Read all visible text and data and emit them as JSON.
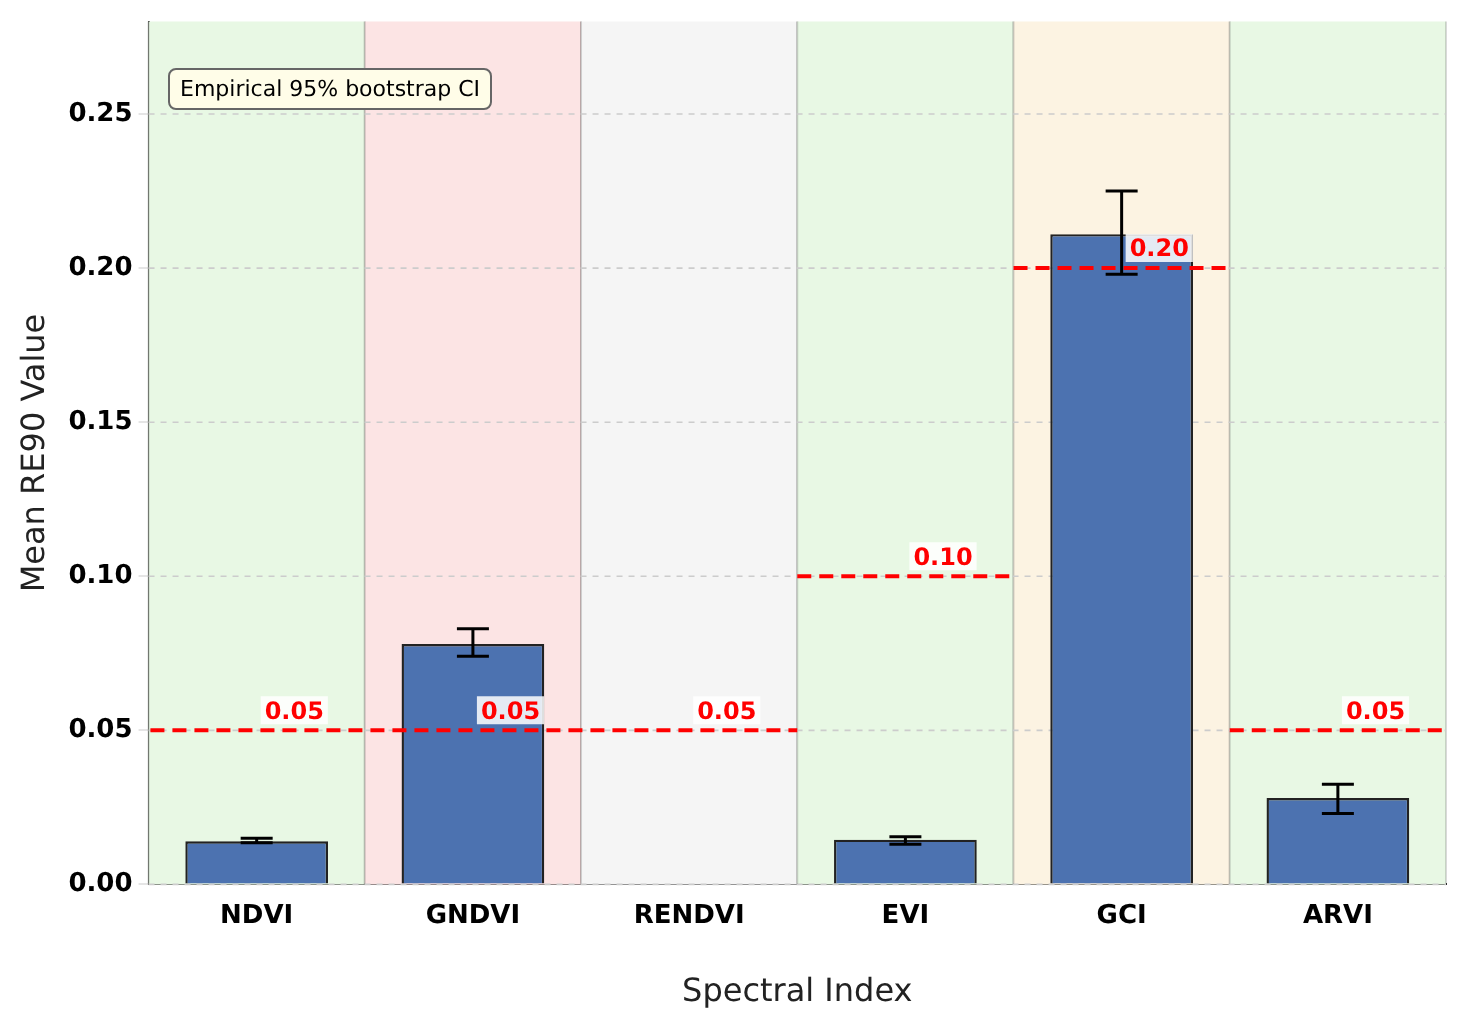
{
  "chart_data": {
    "type": "bar",
    "xlabel": "Spectral Index",
    "ylabel": "Mean RE90 Value",
    "categories": [
      "NDVI",
      "GNDVI",
      "RENDVI",
      "EVI",
      "GCI",
      "ARVI"
    ],
    "series": [
      {
        "type": "bar",
        "color": "#4c72b0",
        "values": [
          0.014,
          0.078,
          null,
          0.0145,
          0.211,
          0.028
        ],
        "errors": [
          [
            0.0135,
            0.015
          ],
          [
            0.074,
            0.083
          ],
          null,
          [
            0.013,
            0.0155
          ],
          [
            0.198,
            0.225
          ],
          [
            0.023,
            0.0325
          ]
        ]
      },
      {
        "type": "step",
        "color": "#ff0000",
        "line_style": "dashed",
        "values": [
          0.05,
          0.05,
          0.05,
          0.1,
          0.2,
          0.05
        ],
        "value_labels": [
          "0.05",
          "0.05",
          "0.05",
          "0.10",
          "0.20",
          "0.05"
        ]
      }
    ],
    "bands": [
      {
        "axis": "x",
        "from": "NDVI",
        "to": "NDVI",
        "color": "#e8f8e4"
      },
      {
        "axis": "x",
        "from": "GNDVI",
        "to": "GNDVI",
        "color": "#fce4e4"
      },
      {
        "axis": "x",
        "from": "RENDVI",
        "to": "RENDVI",
        "color": "#f5f5f5"
      },
      {
        "axis": "x",
        "from": "EVI",
        "to": "EVI",
        "color": "#e8f8e4"
      },
      {
        "axis": "x",
        "from": "GCI",
        "to": "GCI",
        "color": "#fcf3e2"
      },
      {
        "axis": "x",
        "from": "ARVI",
        "to": "ARVI",
        "color": "#e8f8e4"
      }
    ],
    "annotations": [
      "Empirical 95% bootstrap CI"
    ],
    "ylim": [
      0,
      0.28
    ],
    "yticks": [
      {
        "value": 0,
        "label": "0.00"
      },
      0.05,
      {
        "value": 0.1,
        "label": "0.10"
      },
      0.15,
      {
        "value": 0.2,
        "label": "0.20"
      },
      0.25
    ],
    "grid": "y",
    "legend": false
  }
}
